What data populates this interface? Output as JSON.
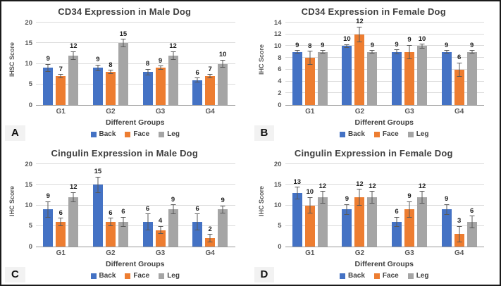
{
  "figure": {
    "legend_labels": [
      "Back",
      "Face",
      "Leg"
    ],
    "colors": {
      "series": [
        "#4472C4",
        "#ED7D31",
        "#A5A5A5"
      ],
      "gridline": "#DBDBDB",
      "axis_line": "#9A9A9A",
      "title_text": "#404040",
      "tick_text": "#595959",
      "value_label_text": "#1F1F1F",
      "panel_letter_bg": "#F2F2F2"
    },
    "panel_letters": [
      "A",
      "B",
      "C",
      "D"
    ]
  },
  "chart_data": [
    {
      "type": "bar",
      "panel_label": "A",
      "title": "CD34 Expression in Male Dog",
      "xlabel": "Different Groups",
      "ylabel": "IHSC Score",
      "ylim": [
        0,
        20
      ],
      "yticks": [
        0,
        5,
        10,
        15,
        20
      ],
      "grid": true,
      "legend_position": "bottom",
      "error_bars": true,
      "categories": [
        "G1",
        "G2",
        "G3",
        "G4"
      ],
      "series": [
        {
          "name": "Back",
          "values": [
            9,
            9,
            8,
            6
          ],
          "errors": [
            1,
            0.8,
            0.8,
            0.6
          ]
        },
        {
          "name": "Face",
          "values": [
            7,
            8,
            9,
            7
          ],
          "errors": [
            0.5,
            0.5,
            0.5,
            0.5
          ]
        },
        {
          "name": "Leg",
          "values": [
            12,
            15,
            12,
            10
          ],
          "errors": [
            1,
            1,
            1,
            1
          ]
        }
      ]
    },
    {
      "type": "bar",
      "panel_label": "B",
      "title": "CD34 Expression in Female Dog",
      "xlabel": "Different Groups",
      "ylabel": "IHC Score",
      "ylim": [
        0,
        14
      ],
      "yticks": [
        0,
        2,
        4,
        6,
        8,
        10,
        12,
        14
      ],
      "grid": true,
      "legend_position": "bottom",
      "error_bars": true,
      "categories": [
        "G1",
        "G2",
        "G3",
        "G4"
      ],
      "series": [
        {
          "name": "Back",
          "values": [
            9,
            10,
            9,
            9
          ],
          "errors": [
            0.3,
            0.3,
            0.4,
            0.3
          ]
        },
        {
          "name": "Face",
          "values": [
            8,
            12,
            9,
            6
          ],
          "errors": [
            1.2,
            1.3,
            1.2,
            1.2
          ]
        },
        {
          "name": "Leg",
          "values": [
            9,
            9,
            10,
            9
          ],
          "errors": [
            0.3,
            0.3,
            0.4,
            0.3
          ]
        }
      ]
    },
    {
      "type": "bar",
      "panel_label": "C",
      "title": "Cingulin Expression in Male Dog",
      "xlabel": "Different Groups",
      "ylabel": "IHC Score",
      "ylim": [
        0,
        20
      ],
      "yticks": [
        0,
        5,
        10,
        15,
        20
      ],
      "grid": true,
      "legend_position": "bottom",
      "error_bars": true,
      "categories": [
        "G1",
        "G2",
        "G3",
        "G4"
      ],
      "series": [
        {
          "name": "Back",
          "values": [
            9,
            15,
            6,
            6
          ],
          "errors": [
            2,
            2,
            2,
            2
          ]
        },
        {
          "name": "Face",
          "values": [
            6,
            6,
            4,
            2
          ],
          "errors": [
            1,
            1,
            1,
            1
          ]
        },
        {
          "name": "Leg",
          "values": [
            12,
            6,
            9,
            9
          ],
          "errors": [
            1.2,
            1.2,
            1.2,
            1
          ]
        }
      ]
    },
    {
      "type": "bar",
      "panel_label": "D",
      "title": "Cingulin Expression in Female Dog",
      "xlabel": "Different Groups",
      "ylabel": "IHC Score",
      "ylim": [
        0,
        20
      ],
      "yticks": [
        0,
        5,
        10,
        15,
        20
      ],
      "grid": true,
      "legend_position": "bottom",
      "error_bars": true,
      "categories": [
        "G1",
        "G2",
        "G3",
        "G4"
      ],
      "series": [
        {
          "name": "Back",
          "values": [
            13,
            9,
            6,
            9
          ],
          "errors": [
            1.5,
            1.3,
            1.2,
            1.3
          ]
        },
        {
          "name": "Face",
          "values": [
            10,
            12,
            9,
            3
          ],
          "errors": [
            2,
            2,
            2,
            2
          ]
        },
        {
          "name": "Leg",
          "values": [
            12,
            12,
            12,
            6
          ],
          "errors": [
            1.5,
            1.5,
            1.5,
            1.5
          ]
        }
      ]
    }
  ]
}
